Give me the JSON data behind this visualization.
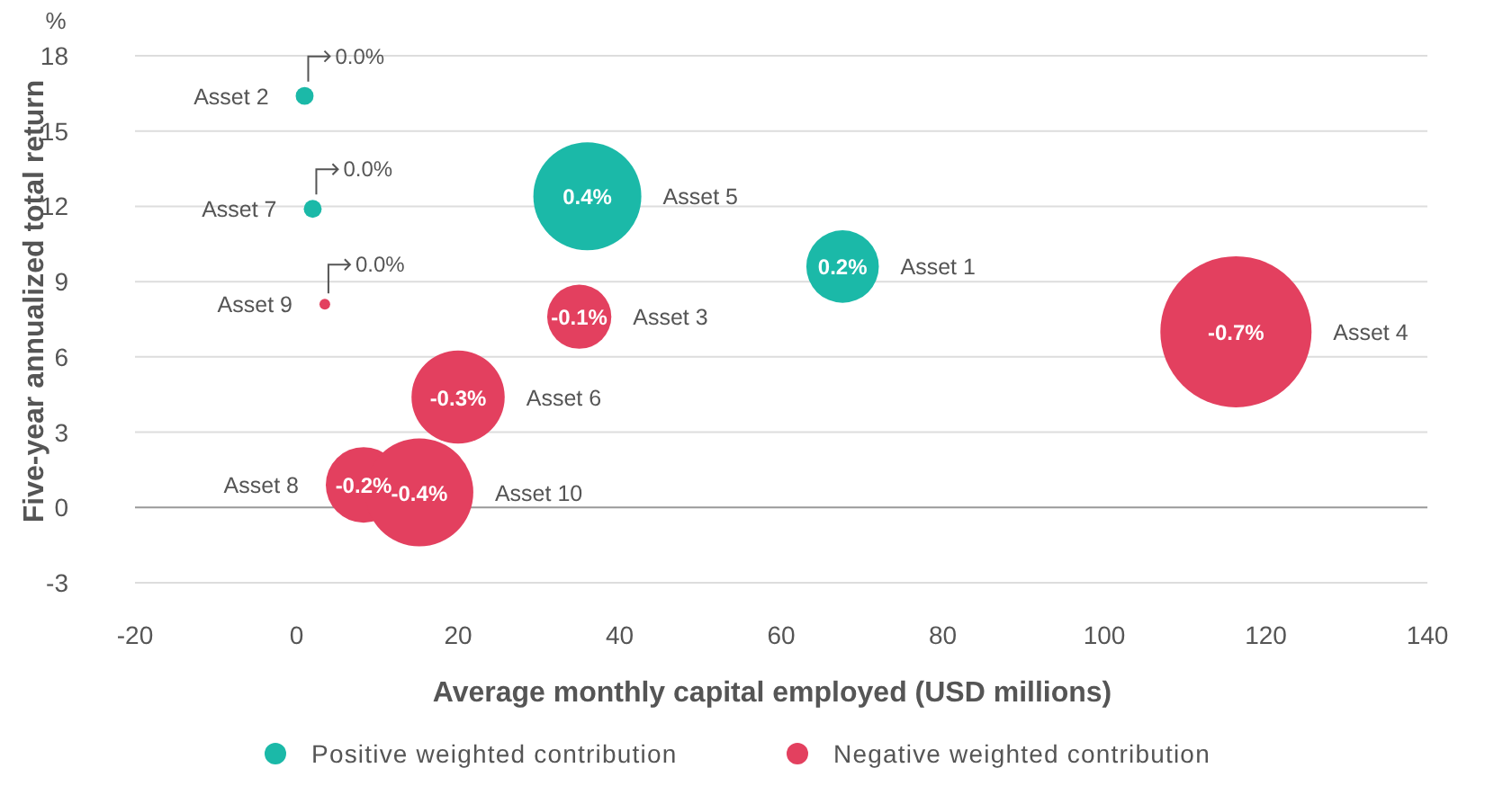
{
  "chart_data": {
    "type": "bubble",
    "xlabel": "Average monthly capital employed (USD millions)",
    "ylabel": "Five-year annualized total return",
    "xlim": [
      -20,
      140
    ],
    "xticks": [
      -20,
      0,
      20,
      40,
      60,
      80,
      100,
      120,
      140
    ],
    "ylim": [
      -3,
      18
    ],
    "yticks": [
      -3,
      0,
      3,
      6,
      9,
      12,
      15,
      18
    ],
    "grid": "y",
    "legend": "bottom",
    "series": [
      {
        "name": "Positive weighted contribution",
        "color": "#1bb9a8",
        "x": [
          1,
          2,
          36,
          67.6
        ],
        "values": [
          16.4,
          11.9,
          12.4,
          9.6
        ],
        "sizes": [
          0.014,
          0.014,
          0.51,
          0.23
        ]
      },
      {
        "name": "Negative weighted contribution",
        "color": "#e3405f",
        "x": [
          3.5,
          35,
          20,
          8.3,
          15.2,
          116.3
        ],
        "values": [
          8.1,
          7.6,
          4.4,
          0.9,
          0.6,
          7.0
        ],
        "sizes": [
          0.005,
          0.18,
          0.38,
          0.25,
          0.51,
          1
        ]
      }
    ],
    "annotations": [
      "%",
      {
        "text": "0.0%",
        "x": 1,
        "y": 16.4
      },
      {
        "text": "0.0%",
        "x": 2,
        "y": 11.9
      },
      {
        "text": "0.4%",
        "x": 36,
        "y": 12.4
      },
      {
        "text": "0.2%",
        "x": 67.6,
        "y": 9.6
      },
      {
        "text": "0.0%",
        "x": 3.5,
        "y": 8.1
      },
      {
        "text": "-0.1%",
        "x": 35,
        "y": 7.6
      },
      {
        "text": "-0.3%",
        "x": 20,
        "y": 4.4
      },
      {
        "text": "-0.2%",
        "x": 8.3,
        "y": 0.9
      },
      {
        "text": "-0.4%",
        "x": 15.2,
        "y": 0.6
      },
      {
        "text": "-0.7%",
        "x": 116.3,
        "y": 7.0
      },
      "Asset 2",
      "Asset 7",
      "Asset 5",
      "Asset 1",
      "Asset 9",
      "Asset 3",
      "Asset 6",
      "Asset 8",
      "Asset 10",
      "Asset 4"
    ]
  }
}
